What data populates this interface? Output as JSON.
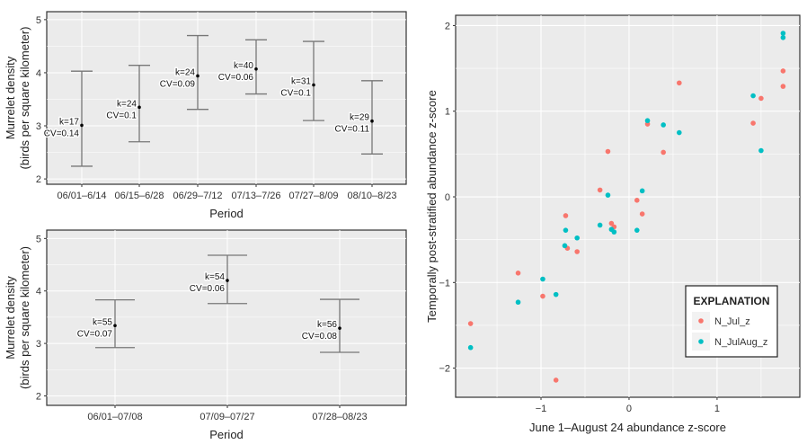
{
  "chart_data": [
    {
      "type": "errorbar",
      "xlabel": "Period",
      "ylabel": [
        "Murrelet density",
        "(birds per square kilometer)"
      ],
      "ylim": [
        1.9,
        5.15
      ],
      "yticks": [
        2,
        3,
        4,
        5
      ],
      "grid": true,
      "categories": [
        "06/01–6/14",
        "06/15–6/28",
        "06/29–7/12",
        "07/13–7/26",
        "07/27–8/09",
        "08/10–8/23"
      ],
      "values": [
        3.01,
        3.35,
        3.94,
        4.07,
        3.77,
        3.09
      ],
      "lower": [
        2.24,
        2.7,
        3.31,
        3.6,
        3.1,
        2.47
      ],
      "upper": [
        4.03,
        4.14,
        4.7,
        4.62,
        4.59,
        3.85
      ],
      "k_labels": [
        "k=17",
        "k=24",
        "k=24",
        "k=40",
        "k=31",
        "k=29"
      ],
      "cv_labels": [
        "CV=0.14",
        "CV=0.1",
        "CV=0.09",
        "CV=0.06",
        "CV=0.1",
        "CV=0.11"
      ]
    },
    {
      "type": "errorbar",
      "xlabel": "Period",
      "ylabel": [
        "Murrelet density",
        "(birds per square kilometer)"
      ],
      "ylim": [
        1.82,
        5.16
      ],
      "yticks": [
        2,
        3,
        4,
        5
      ],
      "grid": true,
      "categories": [
        "06/01–07/08",
        "07/09–07/27",
        "07/28–08/23"
      ],
      "values": [
        3.34,
        4.2,
        3.29
      ],
      "lower": [
        2.92,
        3.76,
        2.83
      ],
      "upper": [
        3.83,
        4.68,
        3.84
      ],
      "k_labels": [
        "k=55",
        "k=54",
        "k=56"
      ],
      "cv_labels": [
        "CV=0.07",
        "CV=0.06",
        "CV=0.08"
      ]
    },
    {
      "type": "scatter",
      "xlabel": "June 1–August 24 abundance z-score",
      "ylabel": "Temporally post-stratified abundance z-score",
      "xlim": [
        -1.97,
        1.94
      ],
      "ylim": [
        -2.34,
        2.12
      ],
      "xticks": [
        -1,
        0,
        1
      ],
      "yticks": [
        -2,
        -1,
        0,
        1,
        2
      ],
      "tick_labels_x": [
        "−1",
        "0",
        "1"
      ],
      "tick_labels_y": [
        "−2",
        "−1",
        "0",
        "1",
        "2"
      ],
      "grid": true,
      "legend": {
        "title": "EXPLANATION",
        "placement": "bottom-right"
      },
      "series": [
        {
          "name": "N_Jul_z",
          "color": "#F8766D",
          "x": [
            -1.8,
            -1.26,
            -0.98,
            -0.83,
            -0.72,
            -0.7,
            -0.59,
            -0.33,
            -0.24,
            -0.2,
            -0.17,
            0.09,
            0.15,
            0.21,
            0.39,
            0.57,
            1.41,
            1.5,
            1.75,
            1.75
          ],
          "y": [
            -1.48,
            -0.89,
            -1.16,
            -2.14,
            -0.22,
            -0.6,
            -0.64,
            0.08,
            0.53,
            -0.31,
            -0.35,
            -0.04,
            -0.2,
            0.85,
            0.52,
            1.33,
            0.86,
            1.15,
            1.47,
            1.29
          ]
        },
        {
          "name": "N_JulAug_z",
          "color": "#00BFC4",
          "x": [
            -1.8,
            -1.26,
            -0.98,
            -0.83,
            -0.72,
            -0.73,
            -0.59,
            -0.33,
            -0.24,
            -0.2,
            -0.17,
            0.09,
            0.15,
            0.21,
            0.39,
            0.57,
            1.41,
            1.5,
            1.75,
            1.75
          ],
          "y": [
            -1.76,
            -1.23,
            -0.96,
            -1.14,
            -0.39,
            -0.57,
            -0.48,
            -0.33,
            0.02,
            -0.38,
            -0.41,
            -0.39,
            0.07,
            0.89,
            0.84,
            0.75,
            1.18,
            0.54,
            1.91,
            1.86
          ]
        }
      ]
    }
  ]
}
